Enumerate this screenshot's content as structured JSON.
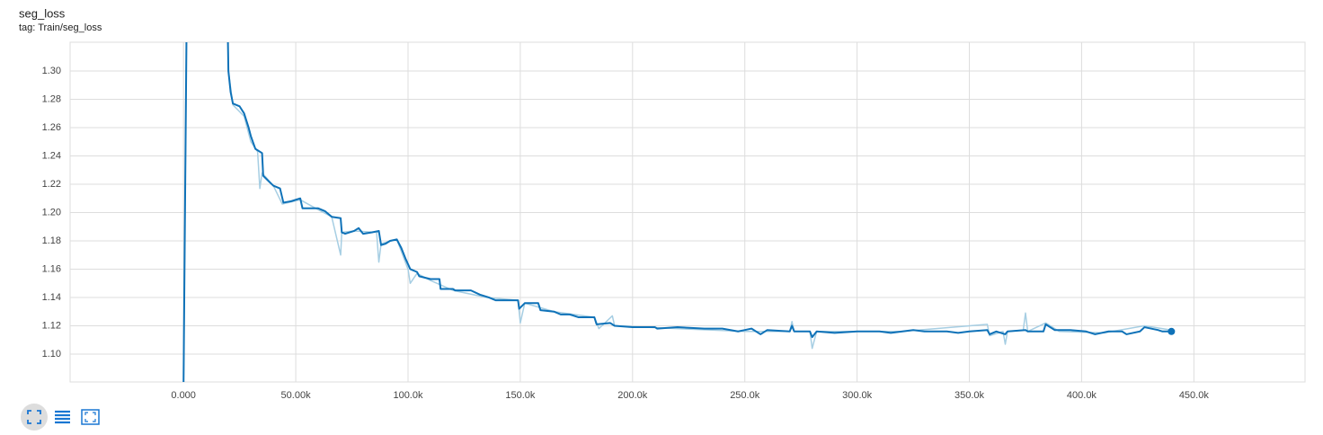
{
  "chart_data": {
    "type": "line",
    "title": "seg_loss",
    "subtitle": "tag: Train/seg_loss",
    "xlim": [
      -50500,
      499500
    ],
    "ylim": [
      1.0803,
      1.3203
    ],
    "xticks": [
      {
        "value": 0,
        "label": "0.000"
      },
      {
        "value": 50000,
        "label": "50.00k"
      },
      {
        "value": 100000,
        "label": "100.0k"
      },
      {
        "value": 150000,
        "label": "150.0k"
      },
      {
        "value": 200000,
        "label": "200.0k"
      },
      {
        "value": 250000,
        "label": "250.0k"
      },
      {
        "value": 300000,
        "label": "300.0k"
      },
      {
        "value": 350000,
        "label": "350.0k"
      },
      {
        "value": 400000,
        "label": "400.0k"
      },
      {
        "value": 450000,
        "label": "450.0k"
      }
    ],
    "yticks": [
      {
        "value": 1.1,
        "label": "1.10"
      },
      {
        "value": 1.12,
        "label": "1.12"
      },
      {
        "value": 1.14,
        "label": "1.14"
      },
      {
        "value": 1.16,
        "label": "1.16"
      },
      {
        "value": 1.18,
        "label": "1.18"
      },
      {
        "value": 1.2,
        "label": "1.20"
      },
      {
        "value": 1.22,
        "label": "1.22"
      },
      {
        "value": 1.24,
        "label": "1.24"
      },
      {
        "value": 1.26,
        "label": "1.26"
      },
      {
        "value": 1.28,
        "label": "1.28"
      },
      {
        "value": 1.3,
        "label": "1.30"
      }
    ],
    "grid": true,
    "series": [
      {
        "color": "#a6cee3",
        "x": [
          0,
          2000,
          19000,
          20000,
          22000,
          27000,
          30000,
          33000,
          34000,
          35000,
          40000,
          44000,
          52000,
          60000,
          66000,
          70000,
          70500,
          76000,
          86000,
          87000,
          88000,
          95000,
          100000,
          101000,
          104000,
          110000,
          120000,
          135000,
          149000,
          150000,
          152000,
          165000,
          183000,
          185000,
          191000,
          192000,
          220000,
          250000,
          270000,
          271000,
          272000,
          279000,
          280000,
          282000,
          320000,
          358000,
          359000,
          365000,
          366000,
          367000,
          374000,
          375000,
          376000,
          384000,
          390000,
          410000,
          428000,
          440000
        ],
        "values": [
          1.075,
          1.45,
          1.4,
          1.3,
          1.276,
          1.268,
          1.25,
          1.243,
          1.217,
          1.228,
          1.219,
          1.206,
          1.209,
          1.202,
          1.197,
          1.17,
          1.186,
          1.187,
          1.186,
          1.165,
          1.178,
          1.181,
          1.16,
          1.15,
          1.157,
          1.152,
          1.145,
          1.14,
          1.138,
          1.122,
          1.136,
          1.13,
          1.126,
          1.118,
          1.127,
          1.12,
          1.118,
          1.116,
          1.116,
          1.123,
          1.116,
          1.116,
          1.104,
          1.116,
          1.116,
          1.121,
          1.113,
          1.116,
          1.107,
          1.116,
          1.117,
          1.129,
          1.116,
          1.122,
          1.116,
          1.115,
          1.12,
          1.117
        ]
      },
      {
        "color": "#0f72b8",
        "x": [
          0,
          2000,
          19000,
          20000,
          21000,
          22000,
          25000,
          27000,
          29000,
          30000,
          32000,
          35000,
          35500,
          38000,
          40000,
          43000,
          44500,
          48000,
          52000,
          53000,
          60000,
          63000,
          66000,
          70000,
          70500,
          72000,
          76000,
          78000,
          80000,
          84000,
          87000,
          88000,
          90000,
          92000,
          95000,
          97000,
          99000,
          101000,
          104000,
          105000,
          110000,
          114000,
          114500,
          120000,
          121000,
          128000,
          132000,
          136000,
          139000,
          142000,
          149000,
          149500,
          152000,
          158000,
          159000,
          165000,
          168000,
          172000,
          176000,
          183000,
          184000,
          190000,
          192000,
          200000,
          210000,
          211000,
          220000,
          232000,
          240000,
          247000,
          250000,
          253000,
          257000,
          260000,
          270000,
          271000,
          272000,
          279000,
          280000,
          282000,
          290000,
          300000,
          310000,
          315000,
          325000,
          330000,
          340000,
          345000,
          350000,
          358000,
          359000,
          362000,
          366000,
          367000,
          375000,
          376000,
          383000,
          384000,
          388000,
          395000,
          402000,
          406000,
          412000,
          418000,
          420000,
          426000,
          428000,
          434000,
          436000,
          440000
        ],
        "values": [
          1.075,
          1.45,
          1.4,
          1.3,
          1.285,
          1.277,
          1.275,
          1.27,
          1.26,
          1.254,
          1.245,
          1.242,
          1.226,
          1.222,
          1.219,
          1.217,
          1.207,
          1.208,
          1.21,
          1.203,
          1.203,
          1.201,
          1.197,
          1.196,
          1.186,
          1.185,
          1.187,
          1.189,
          1.185,
          1.186,
          1.187,
          1.177,
          1.178,
          1.18,
          1.181,
          1.175,
          1.167,
          1.16,
          1.158,
          1.155,
          1.153,
          1.153,
          1.146,
          1.146,
          1.145,
          1.145,
          1.142,
          1.14,
          1.138,
          1.138,
          1.138,
          1.132,
          1.136,
          1.136,
          1.131,
          1.13,
          1.128,
          1.128,
          1.126,
          1.126,
          1.121,
          1.122,
          1.12,
          1.119,
          1.119,
          1.118,
          1.119,
          1.118,
          1.118,
          1.116,
          1.117,
          1.118,
          1.114,
          1.117,
          1.116,
          1.12,
          1.116,
          1.116,
          1.112,
          1.116,
          1.115,
          1.116,
          1.116,
          1.115,
          1.117,
          1.116,
          1.116,
          1.115,
          1.116,
          1.117,
          1.114,
          1.116,
          1.114,
          1.116,
          1.117,
          1.116,
          1.116,
          1.121,
          1.117,
          1.117,
          1.116,
          1.114,
          1.116,
          1.116,
          1.114,
          1.116,
          1.119,
          1.117,
          1.116,
          1.116
        ]
      }
    ]
  }
}
